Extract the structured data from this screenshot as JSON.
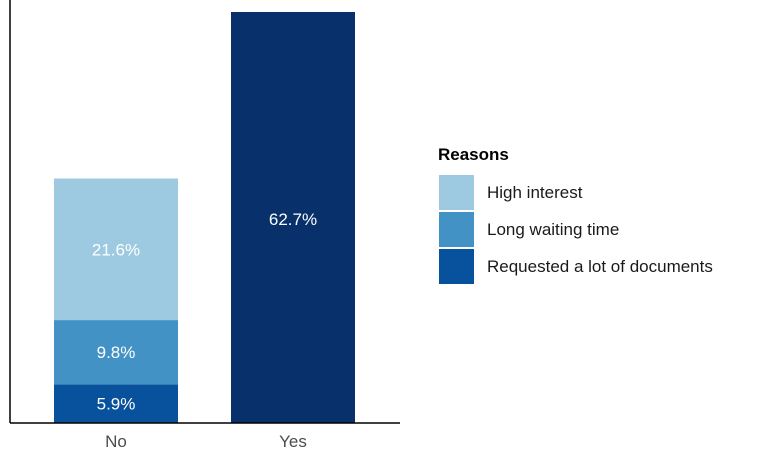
{
  "chart_data": {
    "type": "bar",
    "stacked": true,
    "categories": [
      "No",
      "Yes"
    ],
    "series": [
      {
        "name": "Requested a lot of documents",
        "color": "#08519c",
        "values": [
          5.9,
          0
        ]
      },
      {
        "name": "Long waiting time",
        "color": "#4292c6",
        "values": [
          9.8,
          0
        ]
      },
      {
        "name": "High interest",
        "color": "#9ecae1",
        "values": [
          21.6,
          0
        ]
      }
    ],
    "yes_total": {
      "value": 62.7,
      "color": "#08306b"
    },
    "labels": {
      "No": [
        "5.9%",
        "9.8%",
        "21.6%"
      ],
      "Yes": [
        "62.7%"
      ]
    },
    "ylim": [
      0,
      62.7
    ],
    "grid": false,
    "legend": {
      "position": "right",
      "title": "Reasons",
      "items": [
        "High interest",
        "Long waiting time",
        "Requested a lot of documents"
      ],
      "colors": [
        "#9ecae1",
        "#4292c6",
        "#08519c"
      ]
    }
  }
}
